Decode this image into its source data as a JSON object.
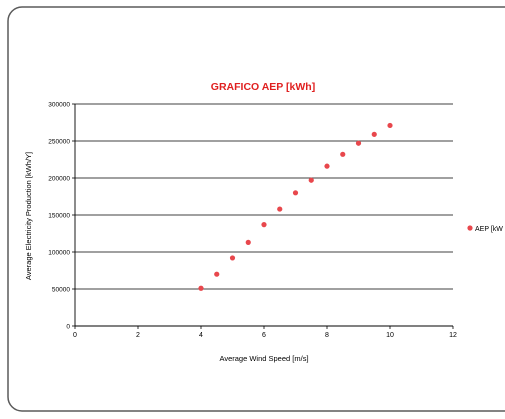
{
  "chart_data": {
    "type": "scatter",
    "title": "GRAFICO AEP [kWh]",
    "xlabel": "Average Wind Speed [m/s]",
    "ylabel": "Average Electricity Production [kWh/Y]",
    "xlim": [
      0,
      12
    ],
    "ylim": [
      0,
      300000
    ],
    "x_ticks": [
      "0",
      "2",
      "4",
      "6",
      "8",
      "10",
      "12"
    ],
    "y_ticks": [
      "0",
      "50000",
      "100000",
      "150000",
      "200000",
      "250000",
      "300000"
    ],
    "grid": "horizontal",
    "legend_position": "right",
    "series": [
      {
        "name": "AEP [kW",
        "color": "#e8474c",
        "x": [
          4,
          4.5,
          5,
          5.5,
          6,
          6.5,
          7,
          7.5,
          8,
          8.5,
          9,
          9.5,
          10
        ],
        "y": [
          51000,
          70000,
          92000,
          113000,
          137000,
          158000,
          180000,
          197000,
          216000,
          232000,
          247000,
          259000,
          271000
        ]
      }
    ]
  },
  "colors": {
    "frame_border": "#5a5a5a",
    "title": "#e02020",
    "marker": "#e8474c",
    "axis": "#000000"
  }
}
